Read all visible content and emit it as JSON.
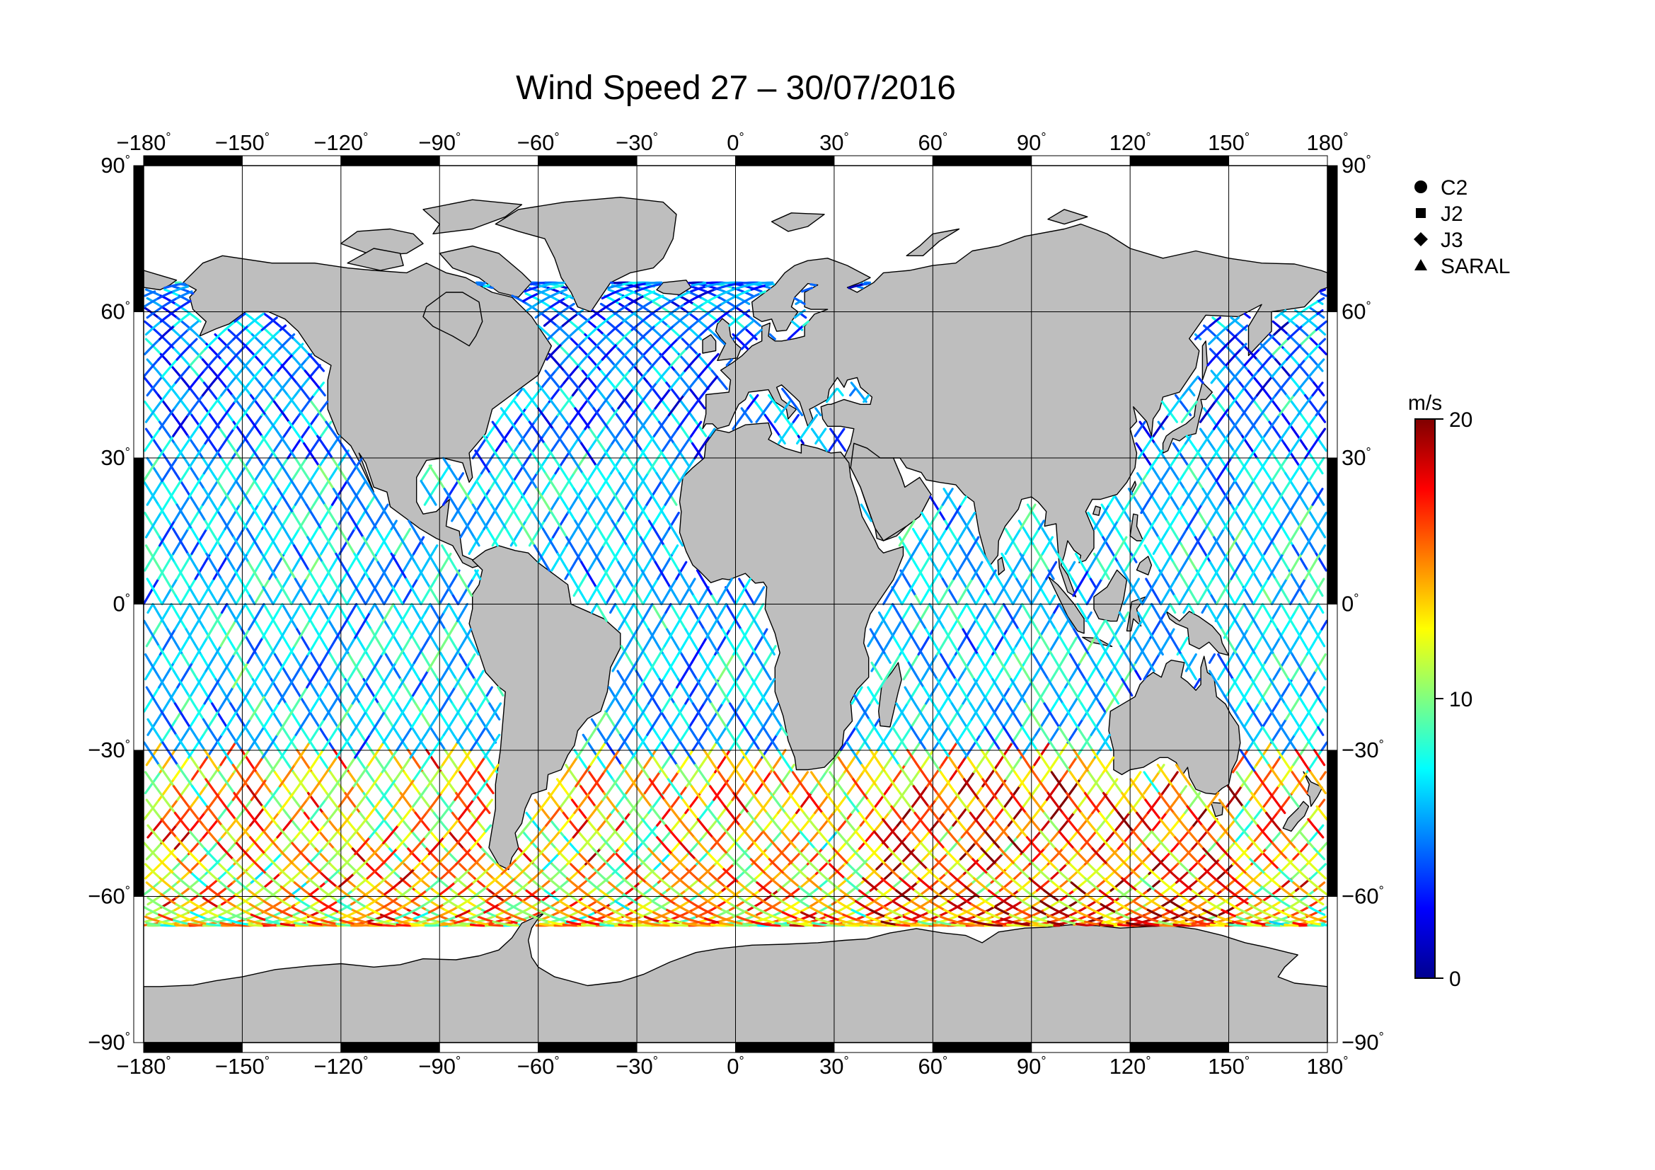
{
  "title": "Wind Speed 27 – 30/07/2016",
  "map": {
    "projection": "plate carrée (equirectangular)",
    "lon_range": [
      -180,
      180
    ],
    "lat_range": [
      -90,
      90
    ],
    "graticule_step_deg": 30,
    "land_color": "#bebebe",
    "ocean_color": "#ffffff",
    "frame_style": "alternating black/white 30° frame"
  },
  "axes": {
    "top": [
      {
        "num": "−180",
        "deg": "°"
      },
      {
        "num": "−150",
        "deg": "°"
      },
      {
        "num": "−120",
        "deg": "°"
      },
      {
        "num": "−90",
        "deg": "°"
      },
      {
        "num": "−60",
        "deg": "°"
      },
      {
        "num": "−30",
        "deg": "°"
      },
      {
        "num": "0",
        "deg": "°"
      },
      {
        "num": "30",
        "deg": "°"
      },
      {
        "num": "60",
        "deg": "°"
      },
      {
        "num": "90",
        "deg": "°"
      },
      {
        "num": "120",
        "deg": "°"
      },
      {
        "num": "150",
        "deg": "°"
      },
      {
        "num": "180",
        "deg": "°"
      }
    ],
    "bottom": [
      {
        "num": "−180",
        "deg": "°"
      },
      {
        "num": "−150",
        "deg": "°"
      },
      {
        "num": "−120",
        "deg": "°"
      },
      {
        "num": "−90",
        "deg": "°"
      },
      {
        "num": "−60",
        "deg": "°"
      },
      {
        "num": "−30",
        "deg": "°"
      },
      {
        "num": "0",
        "deg": "°"
      },
      {
        "num": "30",
        "deg": "°"
      },
      {
        "num": "60",
        "deg": "°"
      },
      {
        "num": "90",
        "deg": "°"
      },
      {
        "num": "120",
        "deg": "°"
      },
      {
        "num": "150",
        "deg": "°"
      },
      {
        "num": "180",
        "deg": "°"
      }
    ],
    "left": [
      {
        "num": "90",
        "deg": "°"
      },
      {
        "num": "60",
        "deg": "°"
      },
      {
        "num": "30",
        "deg": "°"
      },
      {
        "num": "0",
        "deg": "°"
      },
      {
        "num": "−30",
        "deg": "°"
      },
      {
        "num": "−60",
        "deg": "°"
      },
      {
        "num": "−90",
        "deg": "°"
      }
    ],
    "right": [
      {
        "num": "90",
        "deg": "°"
      },
      {
        "num": "60",
        "deg": "°"
      },
      {
        "num": "30",
        "deg": "°"
      },
      {
        "num": "0",
        "deg": "°"
      },
      {
        "num": "−30",
        "deg": "°"
      },
      {
        "num": "−60",
        "deg": "°"
      },
      {
        "num": "−90",
        "deg": "°"
      }
    ]
  },
  "legend": [
    {
      "label": "C2",
      "symbol": "circle"
    },
    {
      "label": "J2",
      "symbol": "square"
    },
    {
      "label": "J3",
      "symbol": "diamond"
    },
    {
      "label": "SARAL",
      "symbol": "triangle"
    }
  ],
  "colorbar": {
    "unit": "m/s",
    "min": 0,
    "max": 20,
    "tick_labels": [
      "0",
      "10",
      "20"
    ],
    "colormap": [
      "#00008f",
      "#0000ff",
      "#0080ff",
      "#00ffff",
      "#80ff80",
      "#ffff00",
      "#ff8000",
      "#ff0000",
      "#800000"
    ]
  },
  "tracks": {
    "description_for_render": "satellite altimeter ground tracks over ocean",
    "lat_limit": 66,
    "wind_regimes": [
      {
        "lat_band": [
          -66,
          -30
        ],
        "typical_speed_ms": [
          8,
          18
        ]
      },
      {
        "lat_band": [
          -30,
          30
        ],
        "typical_speed_ms": [
          4,
          9
        ]
      },
      {
        "lat_band": [
          30,
          66
        ],
        "typical_speed_ms": [
          2,
          8
        ]
      }
    ]
  }
}
